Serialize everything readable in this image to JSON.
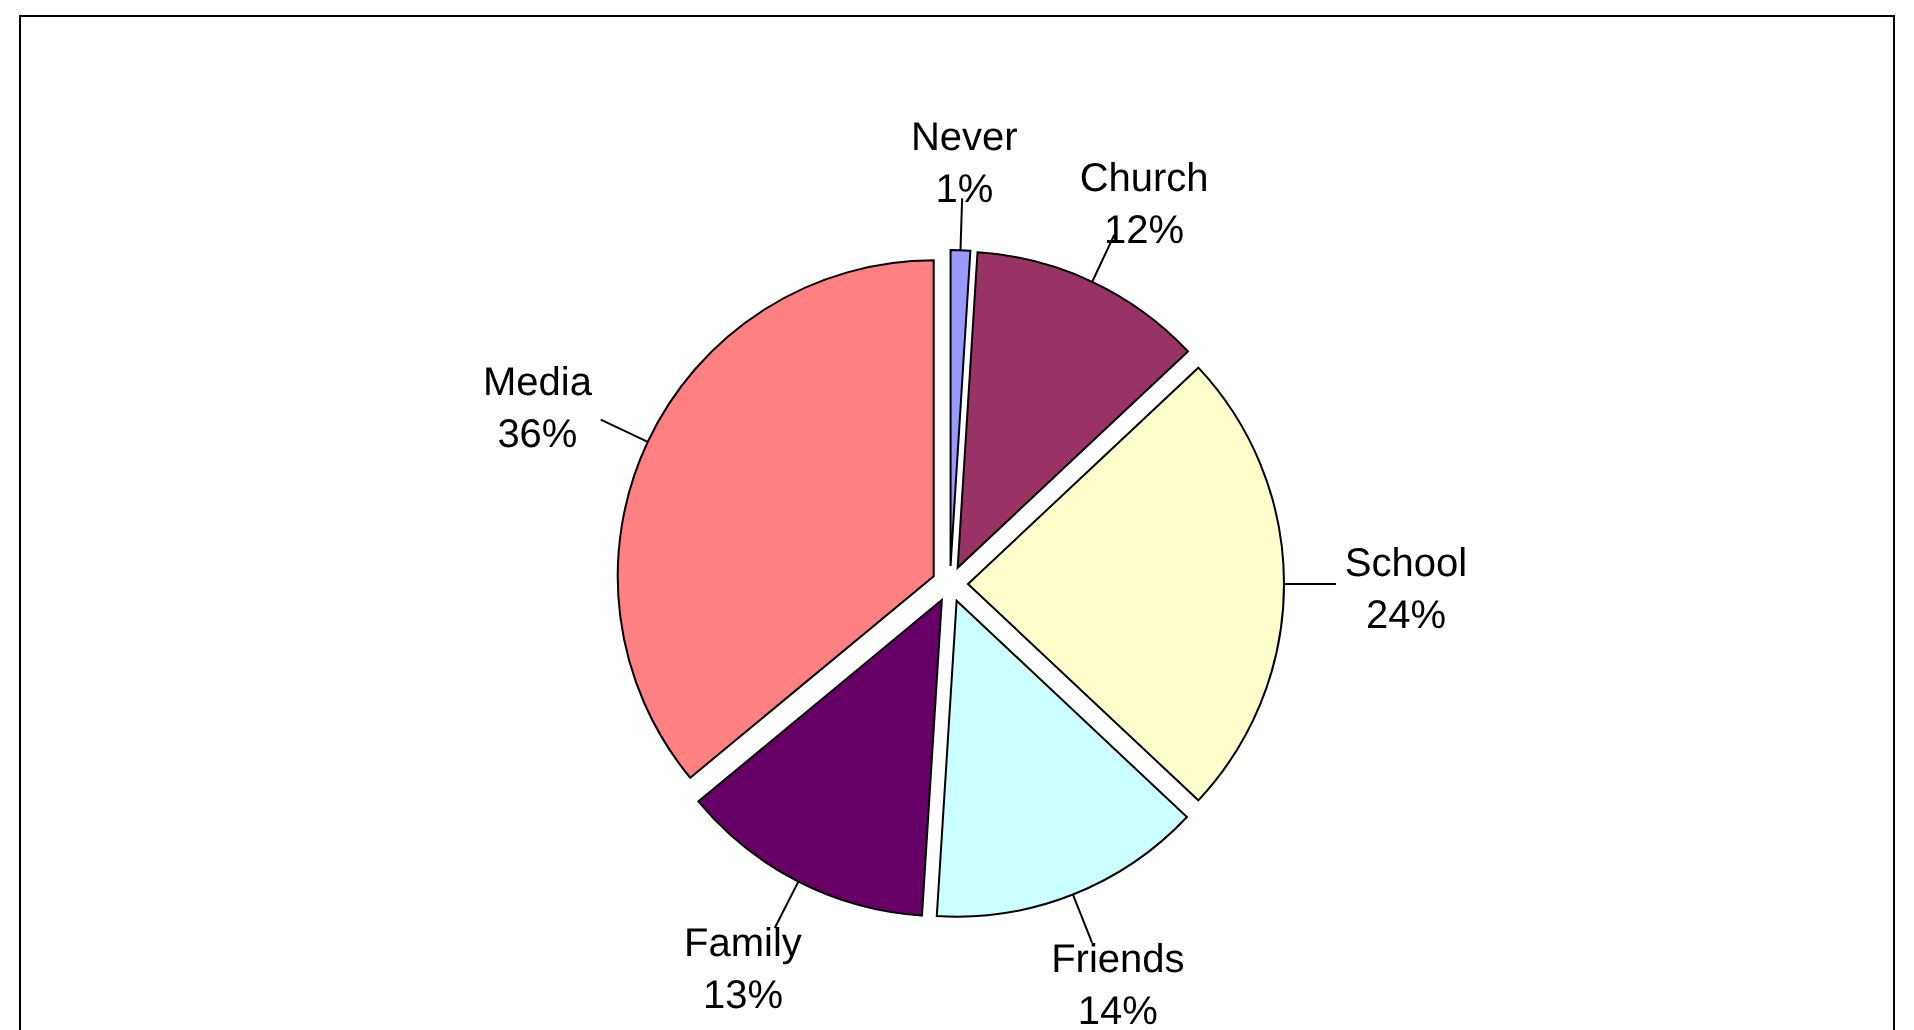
{
  "chart_data": {
    "type": "pie",
    "categories": [
      "Never",
      "Church",
      "School",
      "Friends",
      "Family",
      "Media"
    ],
    "values": [
      1,
      12,
      24,
      14,
      13,
      36
    ],
    "colors": [
      "#9999ff",
      "#993366",
      "#ffffcc",
      "#ccffff",
      "#660066",
      "#ff8080"
    ],
    "value_labels": [
      "1%",
      "12%",
      "24%",
      "14%",
      "13%",
      "36%"
    ]
  }
}
